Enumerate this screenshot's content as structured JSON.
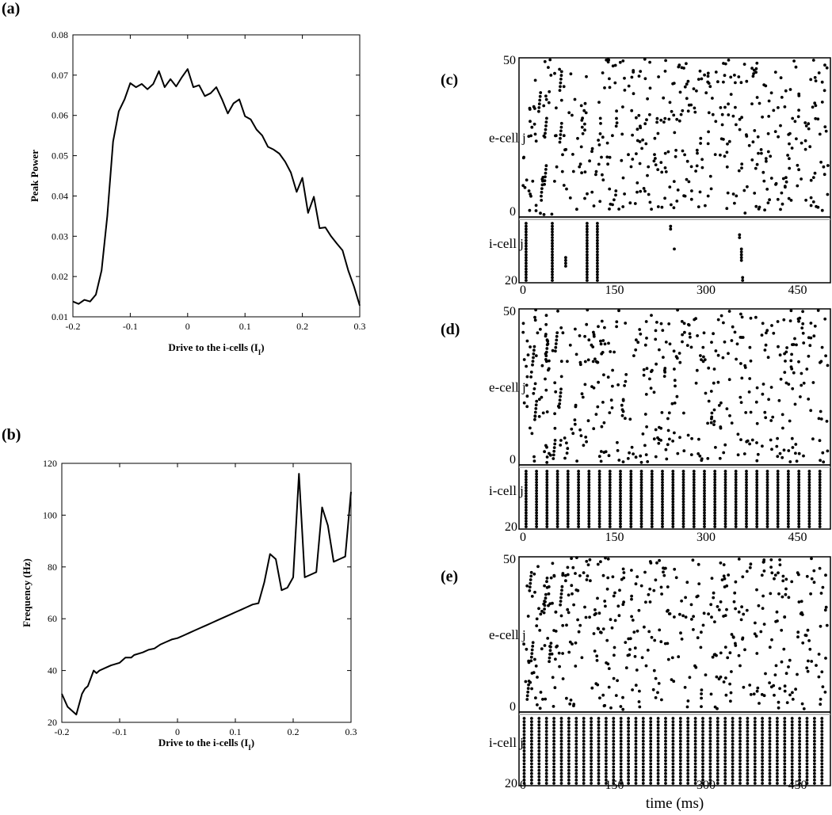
{
  "labels": {
    "a": "(a)",
    "b": "(b)",
    "c": "(c)",
    "d": "(d)",
    "e": "(e)"
  },
  "chart_data": [
    {
      "id": "a",
      "type": "line",
      "title": "",
      "xlabel_text": "Drive to the i-cells (I",
      "xlabel_sub": "I",
      "xlabel_close": ")",
      "ylabel": "Peak Power",
      "xlim": [
        -0.2,
        0.3
      ],
      "ylim": [
        0.01,
        0.08
      ],
      "xticks": [
        "-0.2",
        "-0.1",
        "0",
        "0.1",
        "0.2",
        "0.3"
      ],
      "xtick_values": [
        -0.2,
        -0.1,
        0,
        0.1,
        0.2,
        0.3
      ],
      "yticks": [
        "0.01",
        "0.02",
        "0.03",
        "0.04",
        "0.05",
        "0.06",
        "0.07",
        "0.08"
      ],
      "ytick_values": [
        0.01,
        0.02,
        0.03,
        0.04,
        0.05,
        0.06,
        0.07,
        0.08
      ],
      "grid": false,
      "x": [
        -0.2,
        -0.19,
        -0.18,
        -0.17,
        -0.16,
        -0.15,
        -0.14,
        -0.13,
        -0.12,
        -0.11,
        -0.1,
        -0.09,
        -0.08,
        -0.07,
        -0.06,
        -0.05,
        -0.04,
        -0.03,
        -0.02,
        -0.01,
        0,
        0.01,
        0.02,
        0.03,
        0.04,
        0.05,
        0.06,
        0.07,
        0.08,
        0.09,
        0.1,
        0.11,
        0.12,
        0.13,
        0.14,
        0.15,
        0.16,
        0.17,
        0.18,
        0.19,
        0.2,
        0.21,
        0.22,
        0.23,
        0.24,
        0.25,
        0.26,
        0.27,
        0.28,
        0.29,
        0.3
      ],
      "y": [
        0.0138,
        0.0132,
        0.0142,
        0.0138,
        0.0155,
        0.0215,
        0.035,
        0.0535,
        0.061,
        0.064,
        0.068,
        0.067,
        0.0678,
        0.0665,
        0.0678,
        0.071,
        0.067,
        0.069,
        0.0672,
        0.0695,
        0.0715,
        0.067,
        0.0675,
        0.0648,
        0.0655,
        0.067,
        0.064,
        0.0605,
        0.063,
        0.064,
        0.0598,
        0.059,
        0.0565,
        0.055,
        0.0522,
        0.0515,
        0.0505,
        0.0485,
        0.0458,
        0.041,
        0.0445,
        0.0358,
        0.0398,
        0.032,
        0.0322,
        0.03,
        0.0282,
        0.0265,
        0.0215,
        0.0175,
        0.0128
      ]
    },
    {
      "id": "b",
      "type": "line",
      "title": "",
      "xlabel_text": "Drive to the i-cells (I",
      "xlabel_sub": "I",
      "xlabel_close": ")",
      "ylabel": "Frequency (Hz)",
      "xlim": [
        -0.2,
        0.3
      ],
      "ylim": [
        20,
        120
      ],
      "xticks": [
        "-0.2",
        "-0.1",
        "0",
        "0.1",
        "0.2",
        "0.3"
      ],
      "xtick_values": [
        -0.2,
        -0.1,
        0,
        0.1,
        0.2,
        0.3
      ],
      "yticks": [
        "20",
        "40",
        "60",
        "80",
        "100",
        "120"
      ],
      "ytick_values": [
        20,
        40,
        60,
        80,
        100,
        120
      ],
      "grid": false,
      "x": [
        -0.2,
        -0.19,
        -0.175,
        -0.165,
        -0.16,
        -0.155,
        -0.145,
        -0.14,
        -0.135,
        -0.125,
        -0.115,
        -0.1,
        -0.09,
        -0.08,
        -0.075,
        -0.06,
        -0.05,
        -0.04,
        -0.03,
        -0.02,
        -0.01,
        0,
        0.01,
        0.02,
        0.03,
        0.04,
        0.05,
        0.06,
        0.07,
        0.08,
        0.09,
        0.1,
        0.11,
        0.12,
        0.13,
        0.14,
        0.15,
        0.16,
        0.17,
        0.18,
        0.19,
        0.2,
        0.21,
        0.22,
        0.23,
        0.24,
        0.25,
        0.26,
        0.27,
        0.28,
        0.29,
        0.3
      ],
      "y": [
        31,
        26,
        23,
        31,
        33,
        34,
        40,
        39,
        40,
        41,
        42,
        43,
        45,
        45,
        46,
        47,
        48,
        48.5,
        50,
        51,
        52,
        52.5,
        53.5,
        54.5,
        55.5,
        56.5,
        57.5,
        58.5,
        59.5,
        60.5,
        61.5,
        62.5,
        63.5,
        64.5,
        65.5,
        66,
        74,
        85,
        83,
        71,
        72,
        76,
        116,
        76,
        77,
        78,
        103,
        96,
        82,
        83,
        84,
        109
      ]
    },
    {
      "id": "c",
      "type": "scatter",
      "title": "",
      "xlabel": "",
      "e_ylabel": "e-cell j",
      "i_ylabel": "i-cell j",
      "e_yticks": [
        "50",
        "0"
      ],
      "i_yticks": [
        "20"
      ],
      "xticks": [
        "0",
        "150",
        "300",
        "450"
      ],
      "xtick_values": [
        0,
        150,
        300,
        450
      ],
      "xlim": [
        0,
        500
      ],
      "e_ylim": [
        0,
        50
      ],
      "i_ylim": [
        0,
        20
      ],
      "e_cells": 50,
      "i_cells": 20,
      "i_pattern": "sparse",
      "i_columns": [
        5,
        48,
        105,
        122
      ],
      "i_partial": [
        [
          70,
          12,
          15
        ],
        [
          242,
          1,
          2
        ],
        [
          248,
          9,
          9
        ],
        [
          355,
          4,
          5
        ],
        [
          358,
          9,
          13
        ],
        [
          360,
          19,
          20
        ]
      ],
      "e_seed": 11
    },
    {
      "id": "d",
      "type": "scatter",
      "title": "",
      "xlabel": "",
      "e_ylabel": "e-cell j",
      "i_ylabel": "i-cell j",
      "e_yticks": [
        "50",
        "0"
      ],
      "i_yticks": [
        "20"
      ],
      "xticks": [
        "0",
        "150",
        "300",
        "450"
      ],
      "xtick_values": [
        0,
        150,
        300,
        450
      ],
      "xlim": [
        0,
        500
      ],
      "e_ylim": [
        0,
        50
      ],
      "i_ylim": [
        0,
        20
      ],
      "e_cells": 50,
      "i_cells": 20,
      "i_pattern": "periodic",
      "i_start": 5,
      "i_period": 17.2,
      "e_seed": 23
    },
    {
      "id": "e",
      "type": "scatter",
      "title": "",
      "xlabel": "time (ms)",
      "e_ylabel": "e-cell j",
      "i_ylabel": "i-cell j",
      "e_yticks": [
        "50",
        "0"
      ],
      "i_yticks": [
        "20"
      ],
      "xticks": [
        "0",
        "150",
        "300",
        "450"
      ],
      "xtick_values": [
        0,
        150,
        300,
        450
      ],
      "xlim": [
        0,
        500
      ],
      "e_ylim": [
        0,
        50
      ],
      "i_ylim": [
        0,
        20
      ],
      "e_cells": 50,
      "i_cells": 20,
      "i_pattern": "periodic",
      "i_start": 2,
      "i_period": 12.2,
      "e_seed": 37
    }
  ]
}
